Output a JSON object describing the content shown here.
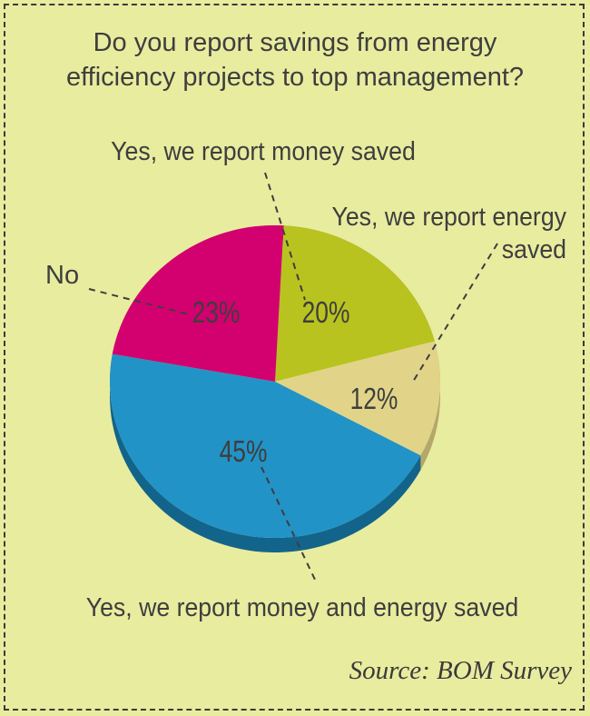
{
  "chart_data": {
    "type": "pie",
    "title_lines": [
      "Do you report savings from energy",
      "efficiency projects to top management?"
    ],
    "slices": [
      {
        "label": "Yes, we report money saved",
        "value": 20,
        "value_label": "20%",
        "color": "#b8c31f",
        "side_color": "#8f9a17"
      },
      {
        "label_lines": [
          "Yes, we report energy",
          "saved"
        ],
        "value": 12,
        "value_label": "12%",
        "color": "#e1d489",
        "side_color": "#b3a86a"
      },
      {
        "label": "Yes, we report money and energy saved",
        "value": 45,
        "value_label": "45%",
        "color": "#2293c7",
        "side_color": "#13648a"
      },
      {
        "label": "No",
        "value": 23,
        "value_label": "23%",
        "color": "#d3006f",
        "side_color": "#9c0052"
      }
    ],
    "source": "Source: BOM Survey",
    "legend": "none"
  }
}
